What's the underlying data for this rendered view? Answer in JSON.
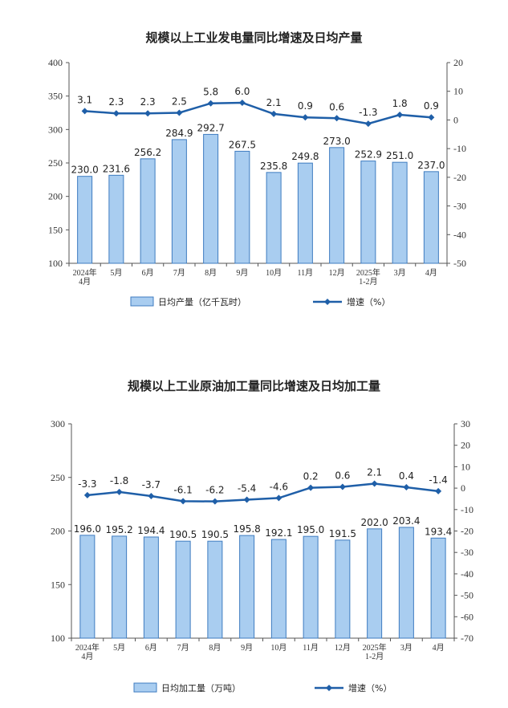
{
  "chart_data": [
    {
      "type": "bar",
      "title": "规模以上工业发电量同比增速及日均产量",
      "categories": [
        "2024年\n4月",
        "5月",
        "6月",
        "7月",
        "8月",
        "9月",
        "10月",
        "11月",
        "12月",
        "2025年\n1-2月",
        "3月",
        "4月"
      ],
      "series": [
        {
          "name": "日均产量（亿千瓦时）",
          "type": "bar",
          "axis": "left",
          "values": [
            230.0,
            231.6,
            256.2,
            284.9,
            292.7,
            267.5,
            235.8,
            249.8,
            273.0,
            252.9,
            251.0,
            237.0
          ]
        },
        {
          "name": "增速（%）",
          "type": "line",
          "axis": "right",
          "values": [
            3.1,
            2.3,
            2.3,
            2.5,
            5.8,
            6.0,
            2.1,
            0.9,
            0.6,
            -1.3,
            1.8,
            0.9
          ]
        }
      ],
      "ylim_left": [
        100,
        400
      ],
      "yticks_left": [
        100,
        150,
        200,
        250,
        300,
        350,
        400
      ],
      "ylim_right": [
        -50,
        20
      ],
      "yticks_right": [
        -50,
        -40,
        -30,
        -20,
        -10,
        0,
        10,
        20
      ],
      "legend_position": "bottom",
      "grid": false,
      "colors": {
        "bar_fill": "#a9cdf0",
        "bar_stroke": "#3f7cc0",
        "line": "#1f5fa8"
      }
    },
    {
      "type": "bar",
      "title": "规模以上工业原油加工量同比增速及日均加工量",
      "categories": [
        "2024年\n4月",
        "5月",
        "6月",
        "7月",
        "8月",
        "9月",
        "10月",
        "11月",
        "12月",
        "2025年\n1-2月",
        "3月",
        "4月"
      ],
      "series": [
        {
          "name": "日均加工量（万吨）",
          "type": "bar",
          "axis": "left",
          "values": [
            196.0,
            195.2,
            194.4,
            190.5,
            190.5,
            195.8,
            192.1,
            195.0,
            191.5,
            202.0,
            203.4,
            193.4
          ]
        },
        {
          "name": "增速（%）",
          "type": "line",
          "axis": "right",
          "values": [
            -3.3,
            -1.8,
            -3.7,
            -6.1,
            -6.2,
            -5.4,
            -4.6,
            0.2,
            0.6,
            2.1,
            0.4,
            -1.4
          ]
        }
      ],
      "ylim_left": [
        100,
        300
      ],
      "yticks_left": [
        100,
        150,
        200,
        250,
        300
      ],
      "ylim_right": [
        -70,
        30
      ],
      "yticks_right": [
        -70,
        -60,
        -50,
        -40,
        -30,
        -20,
        -10,
        0,
        10,
        20,
        30
      ],
      "legend_position": "bottom",
      "grid": false,
      "colors": {
        "bar_fill": "#a9cdf0",
        "bar_stroke": "#3f7cc0",
        "line": "#1f5fa8"
      }
    }
  ]
}
